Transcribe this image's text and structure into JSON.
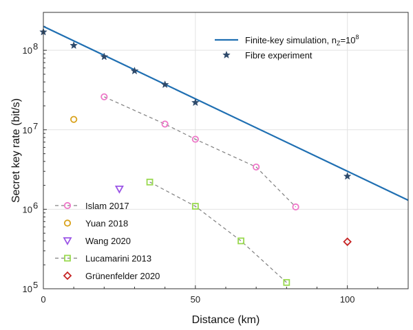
{
  "chart_data": {
    "type": "scatter",
    "xlabel": "Distance (km)",
    "ylabel": "Secret key rate (bit/s)",
    "xlim": [
      0,
      120
    ],
    "ylim": [
      100000,
      300000000
    ],
    "yscale": "log",
    "x_ticks": [
      0,
      50,
      100
    ],
    "x_tick_labels": [
      "0",
      "50",
      "100"
    ],
    "y_ticks": [
      100000,
      1000000,
      10000000,
      100000000
    ],
    "y_tick_labels": [
      {
        "base": "10",
        "exp": "5"
      },
      {
        "base": "10",
        "exp": "6"
      },
      {
        "base": "10",
        "exp": "7"
      },
      {
        "base": "10",
        "exp": "8"
      }
    ],
    "grid": true,
    "simulation": {
      "name": "Finite-key simulation, n",
      "name_sub": "Z",
      "name_tail": "=10",
      "name_exp": "8",
      "color": "#1f6fb2",
      "x": [
        0,
        120
      ],
      "y": [
        200000000,
        1300000
      ]
    },
    "experiment": {
      "name": "Fibre experiment",
      "color": "#2e4a6b",
      "x": [
        0,
        10,
        20,
        30,
        40,
        50,
        100
      ],
      "y": [
        170000000,
        115000000,
        83000000,
        55000000,
        37000000,
        22000000,
        2600000
      ]
    },
    "series": [
      {
        "name": "Islam 2017",
        "marker": "circle",
        "color": "#ee77c8",
        "line": true,
        "x": [
          20,
          40,
          50,
          70,
          83
        ],
        "y": [
          26000000,
          11800000,
          7600000,
          3400000,
          1070000
        ]
      },
      {
        "name": "Yuan 2018",
        "marker": "circle",
        "color": "#d9a21b",
        "line": false,
        "x": [
          10
        ],
        "y": [
          13500000
        ]
      },
      {
        "name": "Wang 2020",
        "marker": "triangle-down",
        "color": "#9b55e6",
        "line": false,
        "x": [
          25
        ],
        "y": [
          1800000
        ]
      },
      {
        "name": "Lucamarini 2013",
        "marker": "square",
        "color": "#99d94f",
        "line": true,
        "x": [
          35,
          50,
          65,
          80
        ],
        "y": [
          2200000,
          1090000,
          400000,
          120000
        ]
      },
      {
        "name": "Grünenfelder 2020",
        "marker": "diamond",
        "color": "#c62222",
        "line": false,
        "x": [
          100
        ],
        "y": [
          390000
        ]
      }
    ]
  }
}
